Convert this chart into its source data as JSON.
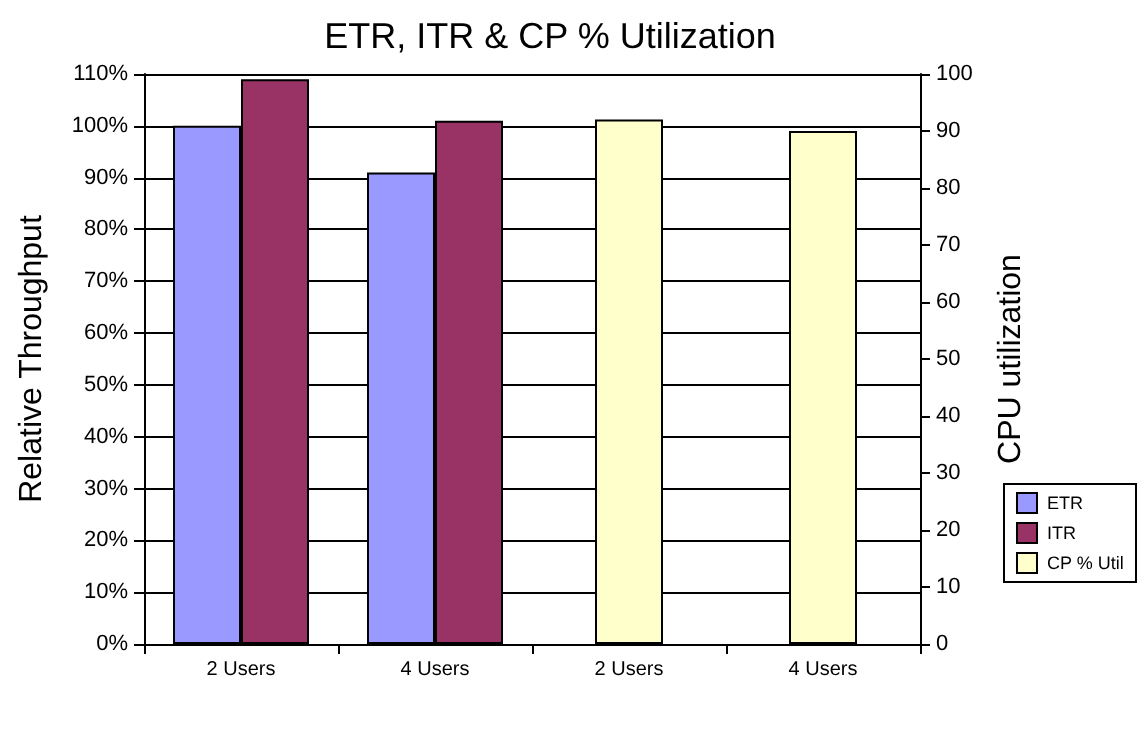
{
  "chart_data": {
    "type": "bar",
    "title": "ETR, ITR & CP % Utilization",
    "ylabel": "Relative Throughput",
    "y2label": "CPU utilization",
    "categories": [
      "2 Users",
      "4 Users",
      "2 Users",
      "4 Users"
    ],
    "series": [
      {
        "name": "ETR",
        "color": "#9999ff",
        "values": [
          100,
          91,
          null,
          null
        ]
      },
      {
        "name": "ITR",
        "color": "#993366",
        "values": [
          109,
          101,
          null,
          null
        ]
      },
      {
        "name": "CP % Util",
        "color": "#ffffcc",
        "axis": "y2",
        "values": [
          null,
          null,
          92,
          90
        ]
      }
    ],
    "ylim": [
      0,
      110
    ],
    "yticks": [
      {
        "value": 0,
        "label": "0%"
      },
      {
        "value": 10,
        "label": "10%"
      },
      {
        "value": 20,
        "label": "20%"
      },
      {
        "value": 30,
        "label": "30%"
      },
      {
        "value": 40,
        "label": "40%"
      },
      {
        "value": 50,
        "label": "50%"
      },
      {
        "value": 60,
        "label": "60%"
      },
      {
        "value": 70,
        "label": "70%"
      },
      {
        "value": 80,
        "label": "80%"
      },
      {
        "value": 90,
        "label": "90%"
      },
      {
        "value": 100,
        "label": "100%"
      },
      {
        "value": 110,
        "label": "110%"
      }
    ],
    "y2lim": [
      0,
      100
    ],
    "y2ticks": [
      0,
      10,
      20,
      30,
      40,
      50,
      60,
      70,
      80,
      90,
      100
    ],
    "grid": "y",
    "legend": "right"
  }
}
